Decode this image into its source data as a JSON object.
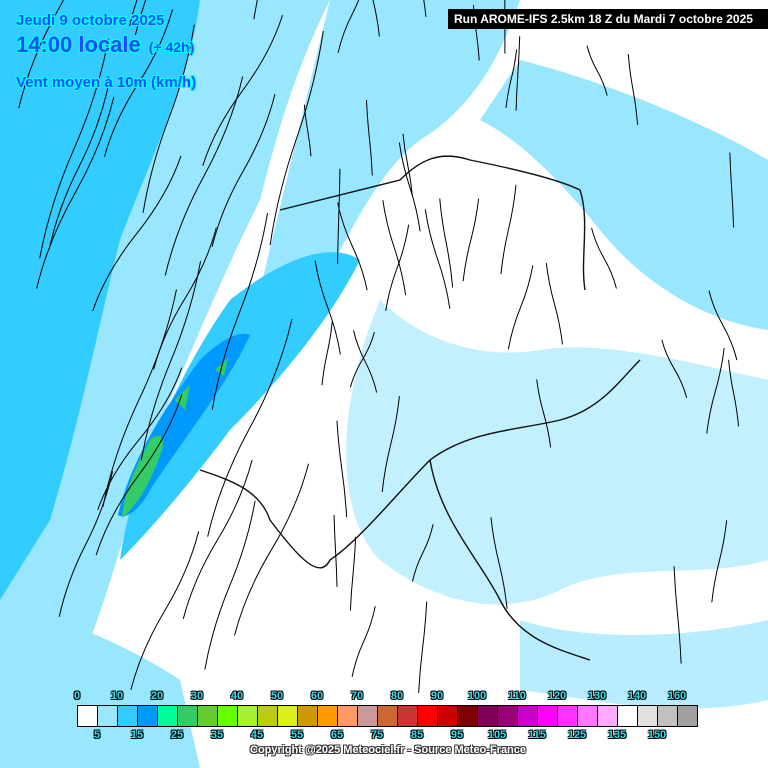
{
  "header": {
    "date": "Jeudi 9 octobre 2025",
    "time": "14:00 locale",
    "lead": "(+ 42h)",
    "parameter": "Vent moyen à 10m (km/h)",
    "run": "Run AROME-IFS 2.5km 18 Z du Mardi 7 octobre 2025"
  },
  "legend": {
    "top_labels": [
      "0",
      "10",
      "20",
      "30",
      "40",
      "50",
      "60",
      "70",
      "80",
      "90",
      "100",
      "110",
      "120",
      "130",
      "140",
      "160"
    ],
    "bottom_labels": [
      "5",
      "15",
      "25",
      "35",
      "45",
      "55",
      "65",
      "75",
      "85",
      "95",
      "105",
      "115",
      "125",
      "135",
      "150"
    ],
    "colors": [
      "#ffffff",
      "#99e6ff",
      "#33ccff",
      "#0099ff",
      "#00ff99",
      "#33cc66",
      "#66cc33",
      "#66ff00",
      "#a6f033",
      "#bbcc11",
      "#d9f01a",
      "#cc9900",
      "#ff9900",
      "#ff9966",
      "#cc9999",
      "#cc6633",
      "#cc3333",
      "#ff0000",
      "#cc0000",
      "#800000",
      "#800055",
      "#990077",
      "#cc00cc",
      "#ff00ff",
      "#ff33ff",
      "#ff77ff",
      "#ffaaff",
      "#ffffff",
      "#e0e0e0",
      "#c0c0c0",
      "#a0a0a0"
    ]
  },
  "copyright": "Copyright @2025 Meteociel.fr - Source Meteo-France"
}
